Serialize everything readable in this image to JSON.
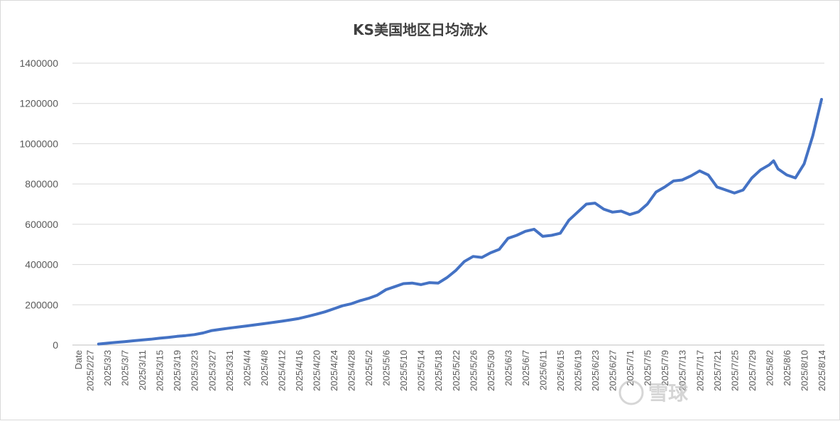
{
  "chart_data": {
    "type": "line",
    "title": "KS美国地区日均流水",
    "xlabel": "",
    "ylabel": "",
    "x_first_label": "Date",
    "x_tick_labels": [
      "2025/2/27",
      "2025/3/3",
      "2025/3/7",
      "2025/3/11",
      "2025/3/15",
      "2025/3/19",
      "2025/3/23",
      "2025/3/27",
      "2025/3/31",
      "2025/4/4",
      "2025/4/8",
      "2025/4/12",
      "2025/4/16",
      "2025/4/20",
      "2025/4/24",
      "2025/4/28",
      "2025/5/2",
      "2025/5/6",
      "2025/5/10",
      "2025/5/14",
      "2025/5/18",
      "2025/5/22",
      "2025/5/26",
      "2025/5/30",
      "2025/6/3",
      "2025/6/7",
      "2025/6/11",
      "2025/6/15",
      "2025/6/19",
      "2025/6/23",
      "2025/6/27",
      "2025/7/1",
      "2025/7/5",
      "2025/7/9",
      "2025/7/13",
      "2025/7/17",
      "2025/7/21",
      "2025/7/25",
      "2025/7/29",
      "2025/8/2",
      "2025/8/6",
      "2025/8/10",
      "2025/8/14"
    ],
    "y_tick_labels": [
      "0",
      "200000",
      "400000",
      "600000",
      "800000",
      "1000000",
      "1200000",
      "1400000"
    ],
    "ylim": [
      0,
      1400000
    ],
    "grid": true,
    "legend": "none",
    "series": [
      {
        "color": "#4472c4",
        "points": [
          [
            "2025/3/1",
            5000
          ],
          [
            "2025/3/3",
            9000
          ],
          [
            "2025/3/5",
            13000
          ],
          [
            "2025/3/7",
            17000
          ],
          [
            "2025/3/9",
            21000
          ],
          [
            "2025/3/11",
            25000
          ],
          [
            "2025/3/13",
            29000
          ],
          [
            "2025/3/15",
            34000
          ],
          [
            "2025/3/17",
            38000
          ],
          [
            "2025/3/19",
            43000
          ],
          [
            "2025/3/21",
            47000
          ],
          [
            "2025/3/23",
            52000
          ],
          [
            "2025/3/25",
            60000
          ],
          [
            "2025/3/27",
            72000
          ],
          [
            "2025/3/29",
            78000
          ],
          [
            "2025/3/31",
            84000
          ],
          [
            "2025/4/4",
            95000
          ],
          [
            "2025/4/8",
            106000
          ],
          [
            "2025/4/12",
            118000
          ],
          [
            "2025/4/14",
            125000
          ],
          [
            "2025/4/16",
            132000
          ],
          [
            "2025/4/18",
            142000
          ],
          [
            "2025/4/20",
            153000
          ],
          [
            "2025/4/22",
            165000
          ],
          [
            "2025/4/24",
            180000
          ],
          [
            "2025/4/26",
            195000
          ],
          [
            "2025/4/28",
            205000
          ],
          [
            "2025/4/30",
            220000
          ],
          [
            "2025/5/2",
            232000
          ],
          [
            "2025/5/4",
            248000
          ],
          [
            "2025/5/6",
            275000
          ],
          [
            "2025/5/8",
            290000
          ],
          [
            "2025/5/10",
            305000
          ],
          [
            "2025/5/12",
            308000
          ],
          [
            "2025/5/14",
            300000
          ],
          [
            "2025/5/16",
            310000
          ],
          [
            "2025/5/18",
            308000
          ],
          [
            "2025/5/20",
            335000
          ],
          [
            "2025/5/22",
            370000
          ],
          [
            "2025/5/24",
            415000
          ],
          [
            "2025/5/26",
            440000
          ],
          [
            "2025/5/28",
            435000
          ],
          [
            "2025/5/30",
            458000
          ],
          [
            "2025/6/1",
            475000
          ],
          [
            "2025/6/3",
            530000
          ],
          [
            "2025/6/5",
            545000
          ],
          [
            "2025/6/7",
            565000
          ],
          [
            "2025/6/9",
            575000
          ],
          [
            "2025/6/11",
            540000
          ],
          [
            "2025/6/13",
            545000
          ],
          [
            "2025/6/15",
            555000
          ],
          [
            "2025/6/17",
            620000
          ],
          [
            "2025/6/19",
            660000
          ],
          [
            "2025/6/21",
            700000
          ],
          [
            "2025/6/23",
            705000
          ],
          [
            "2025/6/25",
            675000
          ],
          [
            "2025/6/27",
            660000
          ],
          [
            "2025/6/29",
            665000
          ],
          [
            "2025/7/1",
            648000
          ],
          [
            "2025/7/3",
            662000
          ],
          [
            "2025/7/5",
            700000
          ],
          [
            "2025/7/7",
            760000
          ],
          [
            "2025/7/9",
            785000
          ],
          [
            "2025/7/11",
            815000
          ],
          [
            "2025/7/13",
            820000
          ],
          [
            "2025/7/15",
            840000
          ],
          [
            "2025/7/17",
            865000
          ],
          [
            "2025/7/19",
            845000
          ],
          [
            "2025/7/21",
            785000
          ],
          [
            "2025/7/23",
            770000
          ],
          [
            "2025/7/25",
            755000
          ],
          [
            "2025/7/27",
            770000
          ],
          [
            "2025/7/29",
            830000
          ],
          [
            "2025/7/31",
            870000
          ],
          [
            "2025/8/2",
            895000
          ],
          [
            "2025/8/3",
            915000
          ],
          [
            "2025/8/4",
            875000
          ],
          [
            "2025/8/6",
            845000
          ],
          [
            "2025/8/8",
            830000
          ],
          [
            "2025/8/10",
            900000
          ],
          [
            "2025/8/12",
            1040000
          ],
          [
            "2025/8/14",
            1220000
          ]
        ]
      }
    ]
  }
}
